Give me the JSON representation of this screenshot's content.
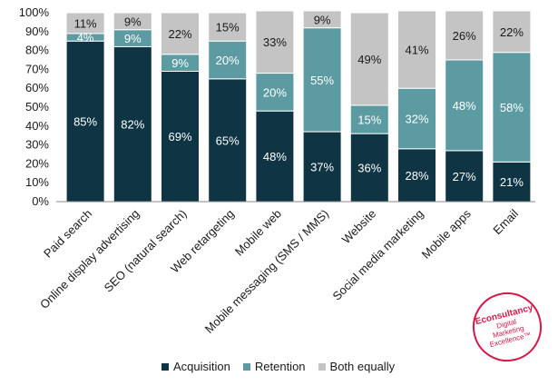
{
  "chart_data": {
    "type": "bar",
    "stacked": true,
    "categories": [
      "Paid search",
      "Online display advertising",
      "SEO (natural search)",
      "Web retargeting",
      "Mobile web",
      "Mobile messaging (SMS / MMS)",
      "Website",
      "Social media marketing",
      "Mobile apps",
      "Email"
    ],
    "series": [
      {
        "name": "Acquisition",
        "color": "#0f3444",
        "label_color": "#ffffff",
        "values": [
          85,
          82,
          69,
          65,
          48,
          37,
          36,
          28,
          27,
          21
        ]
      },
      {
        "name": "Retention",
        "color": "#5d9ba3",
        "label_color": "#ffffff",
        "values": [
          4,
          9,
          9,
          20,
          20,
          55,
          15,
          32,
          48,
          58
        ]
      },
      {
        "name": "Both equally",
        "color": "#c4c4c4",
        "label_color": "#1a1a1a",
        "values": [
          11,
          9,
          22,
          15,
          33,
          9,
          49,
          41,
          26,
          22
        ]
      }
    ],
    "data_labels": [
      [
        "85%",
        "82%",
        "69%",
        "65%",
        "48%",
        "37%",
        "36%",
        "28%",
        "27%",
        "21%"
      ],
      [
        "4%",
        "9%",
        "9%",
        "20%",
        "20%",
        "55%",
        "15%",
        "32%",
        "48%",
        "58%"
      ],
      [
        "11%",
        "9%",
        "22%",
        "15%",
        "33%",
        "9%",
        "49%",
        "41%",
        "26%",
        "22%"
      ]
    ],
    "ylim": [
      0,
      100
    ],
    "yticks": [
      "0%",
      "10%",
      "20%",
      "30%",
      "40%",
      "50%",
      "60%",
      "70%",
      "80%",
      "90%",
      "100%"
    ],
    "grid": false,
    "legend_position": "bottom",
    "xlabel": "",
    "ylabel": ""
  },
  "logo": {
    "brand": "Econsultancy",
    "line1": "Digital",
    "line2": "Marketing",
    "line3": "Excellence™"
  }
}
